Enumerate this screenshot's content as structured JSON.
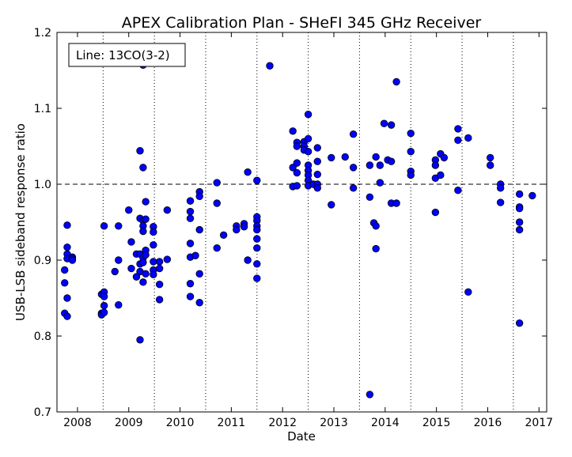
{
  "chart_data": {
    "type": "scatter",
    "title": "APEX Calibration Plan - SHeFI 345 GHz Receiver",
    "xlabel": "Date",
    "ylabel": "USB-LSB sideband response ratio",
    "xlim": [
      2007.6,
      2017.15
    ],
    "ylim": [
      0.7,
      1.2
    ],
    "xticks": [
      2008,
      2009,
      2010,
      2011,
      2012,
      2013,
      2014,
      2015,
      2016,
      2017
    ],
    "xtick_labels": [
      "2008",
      "2009",
      "2010",
      "2011",
      "2012",
      "2013",
      "2014",
      "2015",
      "2016",
      "2017"
    ],
    "yticks": [
      0.7,
      0.8,
      0.9,
      1.0,
      1.1,
      1.2
    ],
    "ytick_labels": [
      "0.7",
      "0.8",
      "0.9",
      "1.0",
      "1.1",
      "1.2"
    ],
    "reference_line": 1.0,
    "dotted_vertical_lines": [
      2008.5,
      2009.5,
      2010.5,
      2011.5,
      2012.5,
      2013.5,
      2014.5,
      2015.5,
      2016.5
    ],
    "legend_text": "Line: 13CO(3-2)",
    "legend_position": "top-left",
    "marker_color": "#0000ff",
    "edge_color": "#000000",
    "points": [
      [
        2007.75,
        0.887
      ],
      [
        2007.75,
        0.87
      ],
      [
        2007.75,
        0.83
      ],
      [
        2007.8,
        0.946
      ],
      [
        2007.8,
        0.917
      ],
      [
        2007.8,
        0.908
      ],
      [
        2007.8,
        0.902
      ],
      [
        2007.8,
        0.85
      ],
      [
        2007.8,
        0.826
      ],
      [
        2007.9,
        0.904
      ],
      [
        2007.9,
        0.902
      ],
      [
        2007.9,
        0.9
      ],
      [
        2008.47,
        0.855
      ],
      [
        2008.47,
        0.83
      ],
      [
        2008.47,
        0.828
      ],
      [
        2008.52,
        0.945
      ],
      [
        2008.52,
        0.858
      ],
      [
        2008.52,
        0.852
      ],
      [
        2008.52,
        0.84
      ],
      [
        2008.52,
        0.831
      ],
      [
        2008.73,
        0.885
      ],
      [
        2008.8,
        0.945
      ],
      [
        2008.8,
        0.9
      ],
      [
        2008.8,
        0.841
      ],
      [
        2009.0,
        0.966
      ],
      [
        2009.05,
        0.924
      ],
      [
        2009.05,
        0.889
      ],
      [
        2009.15,
        0.908
      ],
      [
        2009.15,
        0.878
      ],
      [
        2009.22,
        1.044
      ],
      [
        2009.22,
        0.955
      ],
      [
        2009.22,
        0.908
      ],
      [
        2009.22,
        0.895
      ],
      [
        2009.22,
        0.885
      ],
      [
        2009.22,
        0.795
      ],
      [
        2009.28,
        1.157
      ],
      [
        2009.28,
        1.022
      ],
      [
        2009.28,
        0.952
      ],
      [
        2009.28,
        0.945
      ],
      [
        2009.28,
        0.938
      ],
      [
        2009.28,
        0.903
      ],
      [
        2009.28,
        0.897
      ],
      [
        2009.28,
        0.871
      ],
      [
        2009.33,
        0.977
      ],
      [
        2009.33,
        0.954
      ],
      [
        2009.33,
        0.913
      ],
      [
        2009.33,
        0.907
      ],
      [
        2009.33,
        0.882
      ],
      [
        2009.48,
        0.944
      ],
      [
        2009.48,
        0.937
      ],
      [
        2009.48,
        0.92
      ],
      [
        2009.48,
        0.898
      ],
      [
        2009.48,
        0.887
      ],
      [
        2009.48,
        0.881
      ],
      [
        2009.6,
        0.898
      ],
      [
        2009.6,
        0.889
      ],
      [
        2009.6,
        0.868
      ],
      [
        2009.6,
        0.848
      ],
      [
        2009.75,
        0.966
      ],
      [
        2009.75,
        0.901
      ],
      [
        2010.2,
        0.978
      ],
      [
        2010.2,
        0.964
      ],
      [
        2010.2,
        0.955
      ],
      [
        2010.2,
        0.922
      ],
      [
        2010.2,
        0.904
      ],
      [
        2010.2,
        0.869
      ],
      [
        2010.2,
        0.852
      ],
      [
        2010.3,
        0.906
      ],
      [
        2010.38,
        0.99
      ],
      [
        2010.38,
        0.984
      ],
      [
        2010.38,
        0.94
      ],
      [
        2010.38,
        0.882
      ],
      [
        2010.38,
        0.844
      ],
      [
        2010.72,
        1.002
      ],
      [
        2010.72,
        0.975
      ],
      [
        2010.72,
        0.916
      ],
      [
        2010.85,
        0.933
      ],
      [
        2011.1,
        0.945
      ],
      [
        2011.1,
        0.94
      ],
      [
        2011.25,
        0.948
      ],
      [
        2011.25,
        0.944
      ],
      [
        2011.32,
        1.016
      ],
      [
        2011.32,
        0.9
      ],
      [
        2011.5,
        1.005
      ],
      [
        2011.5,
        0.957
      ],
      [
        2011.5,
        0.952
      ],
      [
        2011.5,
        0.945
      ],
      [
        2011.5,
        0.94
      ],
      [
        2011.5,
        0.928
      ],
      [
        2011.5,
        0.916
      ],
      [
        2011.5,
        0.895
      ],
      [
        2011.5,
        0.876
      ],
      [
        2011.75,
        1.156
      ],
      [
        2012.2,
        1.07
      ],
      [
        2012.2,
        1.022
      ],
      [
        2012.2,
        0.997
      ],
      [
        2012.28,
        1.055
      ],
      [
        2012.28,
        1.05
      ],
      [
        2012.28,
        1.028
      ],
      [
        2012.28,
        1.015
      ],
      [
        2012.28,
        0.998
      ],
      [
        2012.42,
        1.056
      ],
      [
        2012.42,
        1.05
      ],
      [
        2012.42,
        1.045
      ],
      [
        2012.5,
        1.092
      ],
      [
        2012.5,
        1.06
      ],
      [
        2012.5,
        1.043
      ],
      [
        2012.5,
        1.025
      ],
      [
        2012.5,
        1.018
      ],
      [
        2012.5,
        1.012
      ],
      [
        2012.5,
        1.005
      ],
      [
        2012.5,
        0.998
      ],
      [
        2012.6,
        1.0
      ],
      [
        2012.68,
        1.048
      ],
      [
        2012.68,
        1.03
      ],
      [
        2012.68,
        1.013
      ],
      [
        2012.68,
        1.0
      ],
      [
        2012.68,
        0.995
      ],
      [
        2012.95,
        1.035
      ],
      [
        2012.95,
        0.973
      ],
      [
        2013.22,
        1.036
      ],
      [
        2013.38,
        1.066
      ],
      [
        2013.38,
        1.022
      ],
      [
        2013.38,
        0.995
      ],
      [
        2013.7,
        1.025
      ],
      [
        2013.7,
        0.983
      ],
      [
        2013.7,
        0.723
      ],
      [
        2013.78,
        0.949
      ],
      [
        2013.82,
        1.036
      ],
      [
        2013.82,
        0.945
      ],
      [
        2013.82,
        0.915
      ],
      [
        2013.9,
        1.025
      ],
      [
        2013.9,
        1.002
      ],
      [
        2013.98,
        1.08
      ],
      [
        2014.05,
        1.032
      ],
      [
        2014.12,
        1.078
      ],
      [
        2014.12,
        1.03
      ],
      [
        2014.12,
        0.975
      ],
      [
        2014.22,
        1.135
      ],
      [
        2014.22,
        0.975
      ],
      [
        2014.5,
        1.067
      ],
      [
        2014.5,
        1.043
      ],
      [
        2014.5,
        1.017
      ],
      [
        2014.5,
        1.012
      ],
      [
        2014.98,
        1.032
      ],
      [
        2014.98,
        1.025
      ],
      [
        2014.98,
        1.008
      ],
      [
        2014.98,
        0.963
      ],
      [
        2015.08,
        1.04
      ],
      [
        2015.08,
        1.012
      ],
      [
        2015.15,
        1.035
      ],
      [
        2015.42,
        1.073
      ],
      [
        2015.42,
        1.058
      ],
      [
        2015.42,
        0.992
      ],
      [
        2015.62,
        1.061
      ],
      [
        2015.62,
        0.858
      ],
      [
        2016.05,
        1.035
      ],
      [
        2016.05,
        1.025
      ],
      [
        2016.25,
        1.0
      ],
      [
        2016.25,
        0.995
      ],
      [
        2016.25,
        0.976
      ],
      [
        2016.62,
        0.987
      ],
      [
        2016.62,
        0.97
      ],
      [
        2016.62,
        0.968
      ],
      [
        2016.62,
        0.95
      ],
      [
        2016.62,
        0.94
      ],
      [
        2016.62,
        0.817
      ],
      [
        2016.87,
        0.985
      ]
    ]
  }
}
